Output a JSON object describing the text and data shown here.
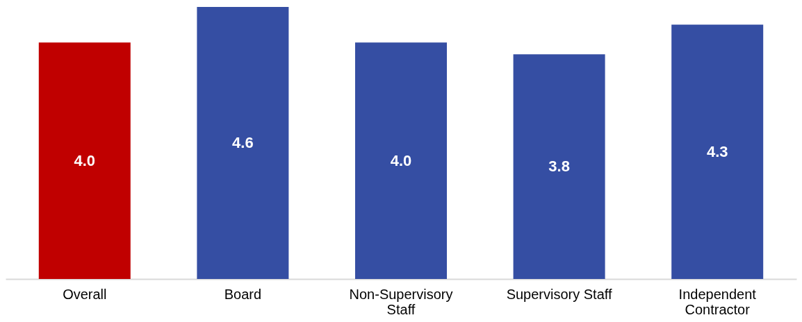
{
  "chart_data": {
    "type": "bar",
    "categories": [
      "Overall",
      "Board",
      "Non-Supervisory Staff",
      "Supervisory Staff",
      "Independent Contractor"
    ],
    "values": [
      4.0,
      4.6,
      4.0,
      3.8,
      4.3
    ],
    "colors": [
      "#c00000",
      "#354ea3",
      "#354ea3",
      "#354ea3",
      "#354ea3"
    ],
    "value_labels": [
      "4.0",
      "4.6",
      "4.0",
      "3.8",
      "4.3"
    ],
    "grid": false,
    "legend": false
  }
}
